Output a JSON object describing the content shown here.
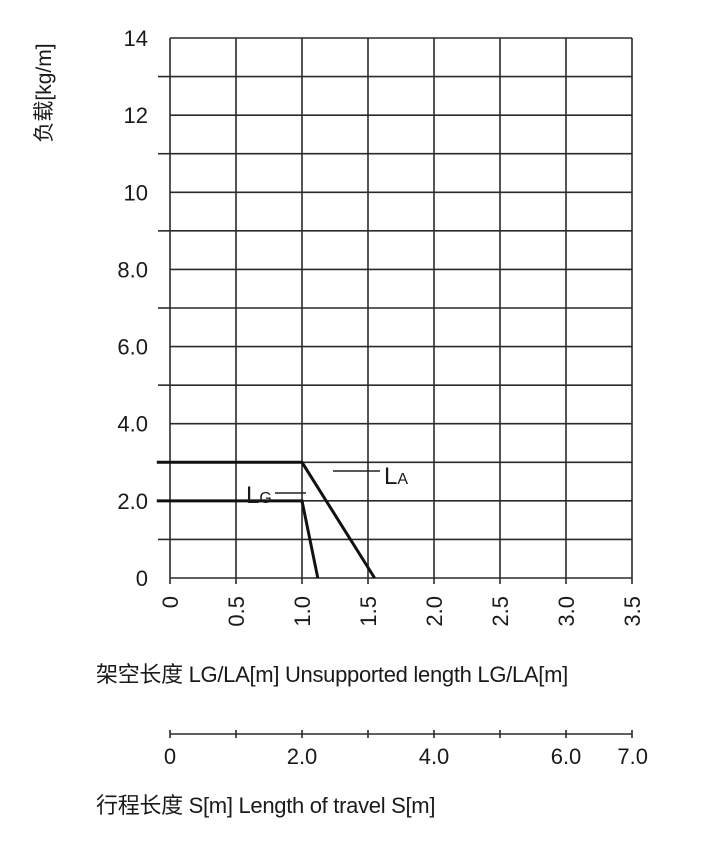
{
  "chart_data": {
    "type": "line",
    "ylabel": "负载[kg/m]",
    "xlabel": "架空长度 LG/LA[m]  Unsupported length LG/LA[m]",
    "x2label": "行程长度 S[m]  Length of travel S[m]",
    "xlim": [
      0,
      3.5
    ],
    "ylim": [
      0,
      14
    ],
    "y_ticks": [
      0,
      2.0,
      4.0,
      6.0,
      8.0,
      10,
      12,
      14
    ],
    "y_tick_labels": [
      "0",
      "2.0",
      "4.0",
      "6.0",
      "8.0",
      "10",
      "12",
      "14"
    ],
    "x_ticks": [
      0,
      0.5,
      1.0,
      1.5,
      2.0,
      2.5,
      3.0,
      3.5
    ],
    "x_tick_labels": [
      "0",
      "0.5",
      "1.0",
      "1.5",
      "2.0",
      "2.5",
      "3.0",
      "3.5"
    ],
    "x2_ticks": [
      0,
      2.0,
      4.0,
      6.0,
      7.0
    ],
    "x2_tick_labels": [
      "0",
      "2.0",
      "4.0",
      "6.0",
      "7.0"
    ],
    "x2_minor_ticks": [
      1.0,
      3.0,
      5.0
    ],
    "x2_range": [
      0,
      7.0
    ],
    "grid": true,
    "series": [
      {
        "name": "LA",
        "points": [
          [
            -0.1,
            3.0
          ],
          [
            1.0,
            3.0
          ],
          [
            1.55,
            0
          ]
        ]
      },
      {
        "name": "LG",
        "points": [
          [
            -0.1,
            2.0
          ],
          [
            1.0,
            2.0
          ],
          [
            1.12,
            0
          ]
        ]
      }
    ],
    "labels": {
      "LA": {
        "main": "L",
        "sub": "A"
      },
      "LG": {
        "main": "L",
        "sub": "G"
      }
    }
  }
}
